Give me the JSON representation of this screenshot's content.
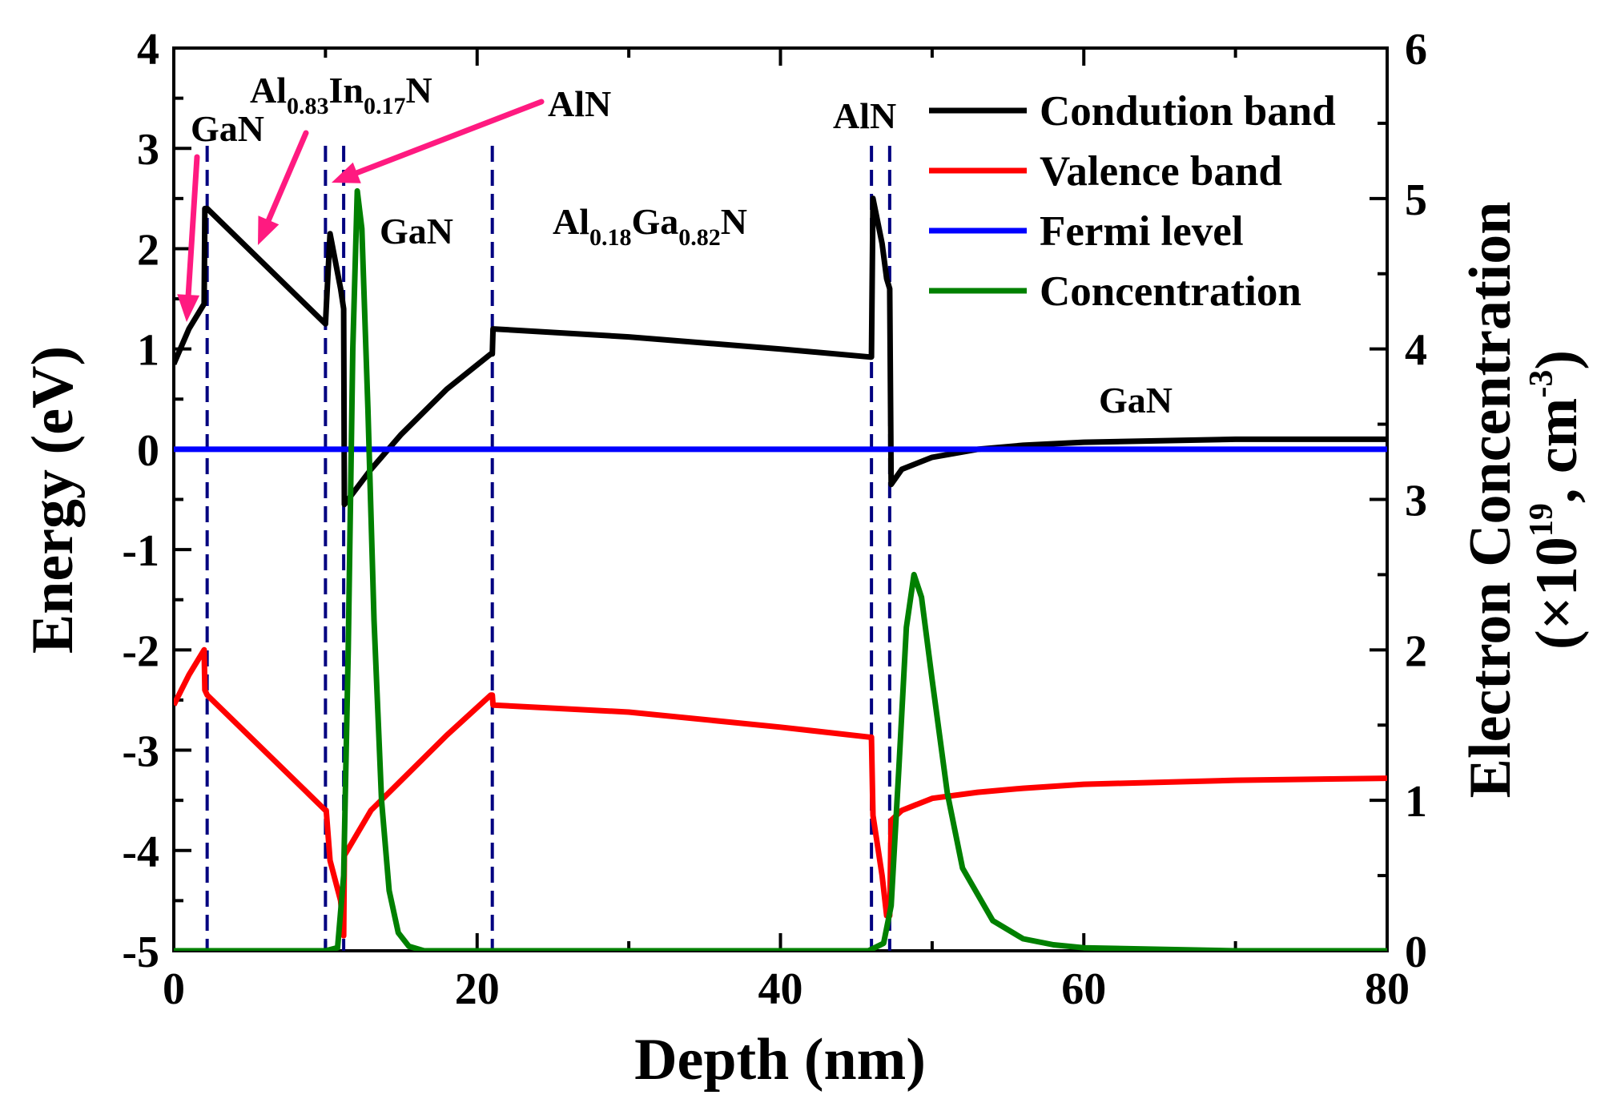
{
  "chart_data": {
    "type": "line",
    "xlabel": "Depth (nm)",
    "ylabel": "Energy (eV)",
    "y2label_line1": "Electron Concentration",
    "y2label_line2": "(×10",
    "y2label_exp1": "19",
    "y2label_mid": ", cm",
    "y2label_exp2": "-3",
    "y2label_end": ")",
    "xlim": [
      0,
      80
    ],
    "ylim": [
      -5,
      4
    ],
    "y2lim": [
      0,
      6
    ],
    "xticks": [
      0,
      20,
      40,
      60,
      80
    ],
    "yticks": [
      -5,
      -4,
      -3,
      -2,
      -1,
      0,
      1,
      2,
      3,
      4
    ],
    "y2ticks": [
      0,
      1,
      2,
      3,
      4,
      5,
      6
    ],
    "colors": {
      "conduction": "#000000",
      "valence": "#ff0000",
      "fermi": "#0000ff",
      "concentration": "#008000",
      "interface": "#000080",
      "arrow": "#ff1a80"
    },
    "interfaces": [
      2.2,
      10.0,
      11.2,
      21.0,
      46.0,
      47.2
    ],
    "series": [
      {
        "name": "Condution band",
        "axis": "left",
        "x": [
          0,
          1.0,
          2.0,
          2.05,
          2.2,
          10.0,
          10.05,
          10.3,
          11.0,
          11.2,
          11.25,
          13,
          15,
          18,
          20.9,
          21.0,
          21.05,
          30,
          40,
          45.9,
          46.0,
          46.1,
          46.7,
          47.0,
          47.2,
          47.3,
          48,
          50,
          53,
          56,
          60,
          70,
          80
        ],
        "y": [
          0.85,
          1.2,
          1.45,
          2.4,
          2.4,
          1.25,
          1.4,
          2.15,
          1.6,
          1.4,
          -0.55,
          -0.2,
          0.15,
          0.6,
          0.95,
          0.95,
          1.2,
          1.12,
          1.0,
          0.92,
          0.92,
          2.5,
          2.05,
          1.7,
          1.6,
          -0.35,
          -0.2,
          -0.08,
          0.0,
          0.04,
          0.07,
          0.1,
          0.1
        ]
      },
      {
        "name": "Valence band",
        "axis": "left",
        "x": [
          0,
          1.0,
          2.0,
          2.05,
          2.2,
          10.0,
          10.05,
          10.3,
          11.0,
          11.2,
          11.25,
          13,
          15,
          18,
          20.9,
          21.0,
          21.05,
          30,
          40,
          45.9,
          46.0,
          46.1,
          46.7,
          47.0,
          47.2,
          47.3,
          48,
          50,
          53,
          56,
          60,
          70,
          80
        ],
        "y": [
          -2.55,
          -2.25,
          -2.0,
          -2.4,
          -2.45,
          -3.6,
          -3.6,
          -4.1,
          -4.5,
          -4.85,
          -4.05,
          -3.6,
          -3.3,
          -2.85,
          -2.45,
          -2.45,
          -2.55,
          -2.62,
          -2.77,
          -2.87,
          -2.87,
          -3.65,
          -4.25,
          -4.65,
          -4.65,
          -3.7,
          -3.6,
          -3.48,
          -3.42,
          -3.38,
          -3.34,
          -3.3,
          -3.28
        ]
      },
      {
        "name": "Fermi level",
        "axis": "left",
        "x": [
          0,
          80
        ],
        "y": [
          0,
          0
        ]
      },
      {
        "name": "Concentration",
        "axis": "right",
        "x": [
          0,
          10.0,
          10.8,
          11.2,
          11.5,
          11.8,
          12.1,
          12.4,
          12.8,
          13.2,
          13.7,
          14.2,
          14.8,
          15.5,
          16.5,
          20,
          30,
          45.8,
          46.2,
          46.8,
          47.3,
          47.8,
          48.3,
          48.8,
          49.3,
          50.0,
          51.0,
          52.0,
          54.0,
          56.0,
          58.0,
          60.0,
          65.0,
          70.0,
          80.0
        ],
        "y": [
          0,
          0,
          0.02,
          0.5,
          2.0,
          4.0,
          5.05,
          4.8,
          3.6,
          2.2,
          1.0,
          0.4,
          0.12,
          0.03,
          0,
          0,
          0,
          0,
          0.02,
          0.05,
          0.3,
          1.2,
          2.15,
          2.5,
          2.35,
          1.8,
          1.05,
          0.55,
          0.2,
          0.08,
          0.04,
          0.02,
          0.01,
          0.0,
          0.0
        ]
      }
    ],
    "annotations": [
      {
        "id": "gan1",
        "base": "GaN"
      },
      {
        "id": "alinn",
        "parts": [
          "Al",
          "0.83",
          "In",
          "0.17",
          "N"
        ]
      },
      {
        "id": "aln1",
        "base": "AlN"
      },
      {
        "id": "gan2",
        "base": "GaN"
      },
      {
        "id": "algan",
        "parts": [
          "Al",
          "0.18",
          "Ga",
          "0.82",
          "N"
        ]
      },
      {
        "id": "aln2",
        "base": "AlN"
      },
      {
        "id": "gan3",
        "base": "GaN"
      }
    ]
  }
}
